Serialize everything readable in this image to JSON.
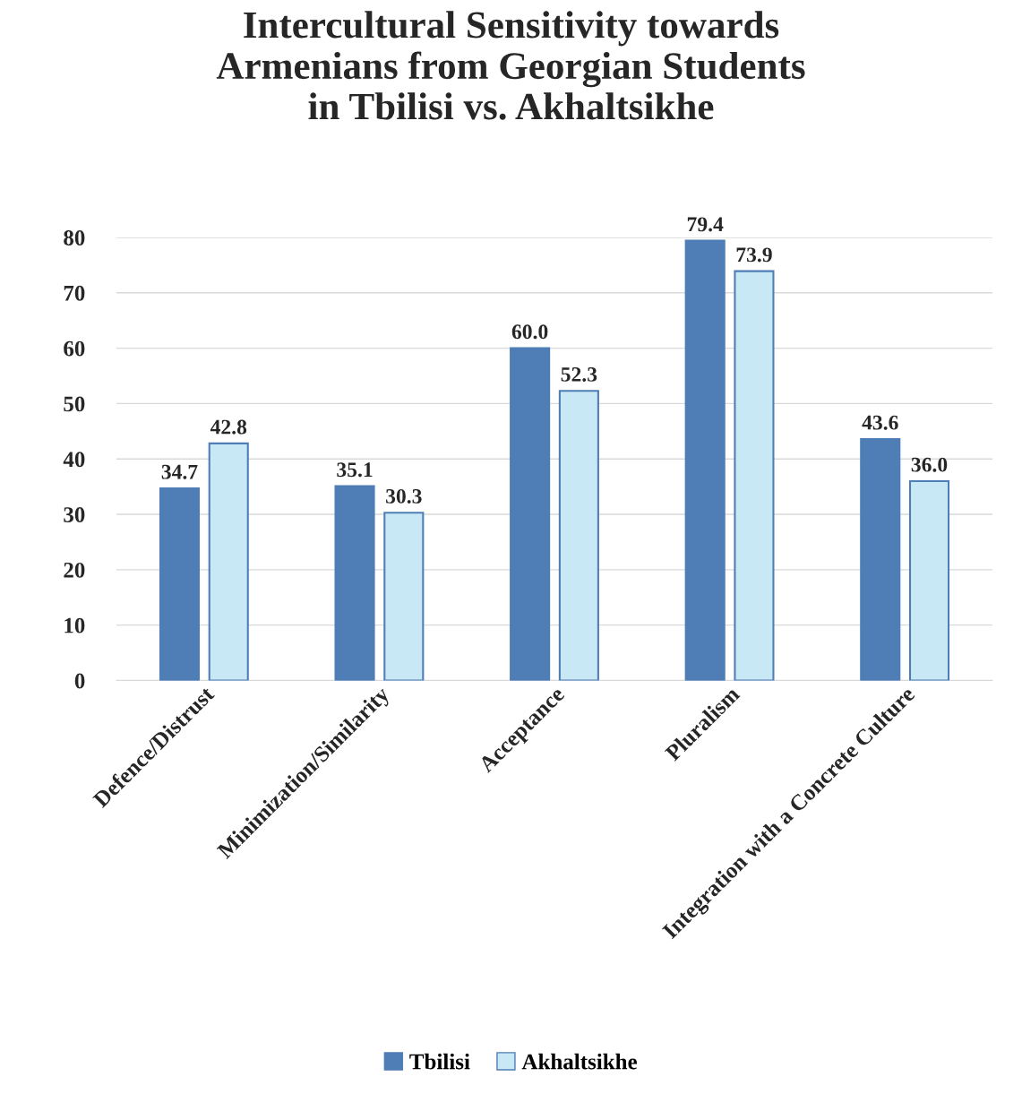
{
  "chart_data": {
    "type": "bar",
    "title": "Intercultural Sensitivity towards\nArmenians from Georgian Students\nin Tbilisi vs. Akhaltsikhe",
    "categories": [
      "Defence/Distrust",
      "Minimization/Similarity",
      "Acceptance",
      "Pluralism",
      "Integration with a Concrete Culture"
    ],
    "series": [
      {
        "name": "Tbilisi",
        "color": "#4f7db5",
        "values": [
          34.7,
          35.1,
          60.0,
          79.4,
          43.6
        ],
        "value_labels": [
          "34.7",
          "35.1",
          "60.0",
          "79.4",
          "43.6"
        ]
      },
      {
        "name": "Akhaltsikhe",
        "color": "#c9e8f6",
        "values": [
          42.8,
          30.3,
          52.3,
          73.9,
          36.0
        ],
        "value_labels": [
          "42.8",
          "30.3",
          "52.3",
          "73.9",
          "36.0"
        ]
      }
    ],
    "ylim": [
      0,
      80
    ],
    "yticks": [
      0,
      10,
      20,
      30,
      40,
      50,
      60,
      70,
      80
    ],
    "grid": "y",
    "legend": "bottom"
  }
}
